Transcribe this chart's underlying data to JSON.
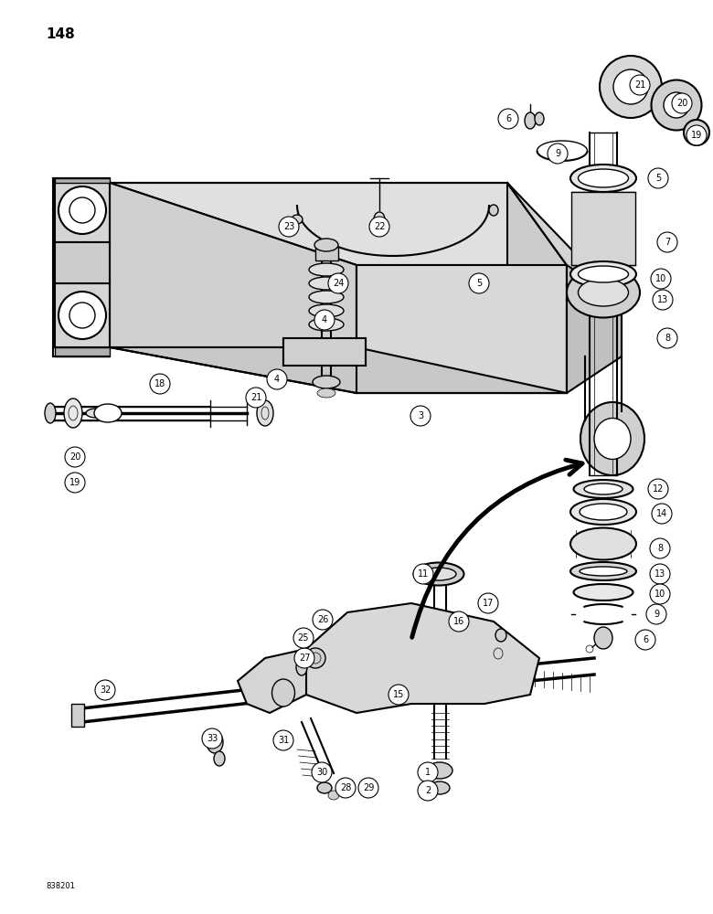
{
  "page_number": "148",
  "bottom_code": "838201",
  "background_color": "#ffffff",
  "line_color": "#000000",
  "figure_width": 7.8,
  "figure_height": 10.0,
  "dpi": 100
}
